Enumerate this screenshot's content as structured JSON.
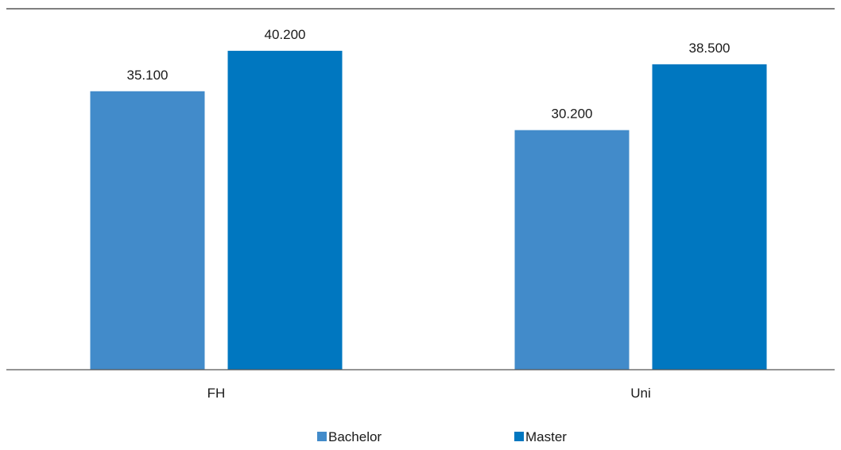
{
  "chart_data": {
    "type": "bar",
    "categories": [
      "FH",
      "Uni"
    ],
    "series": [
      {
        "name": "Bachelor",
        "values": [
          35100,
          30200
        ],
        "labels": [
          "35.100",
          "30.200"
        ],
        "color": "#428bca"
      },
      {
        "name": "Master",
        "values": [
          40200,
          38500
        ],
        "labels": [
          "40.200",
          "38.500"
        ],
        "color": "#0077c0"
      }
    ],
    "ylim": [
      0,
      45500
    ],
    "grid": false,
    "legend_position": "bottom"
  }
}
